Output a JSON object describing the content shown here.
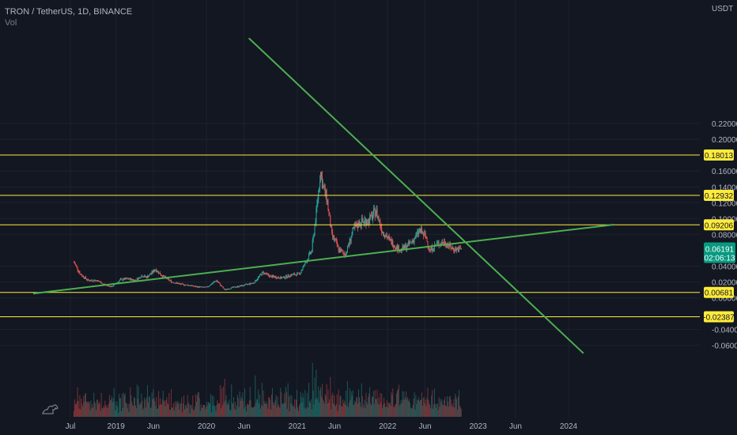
{
  "header": {
    "symbol_line": "TRON / TetherUS, 1D, BINANCE",
    "volume_label": "Vol"
  },
  "colors": {
    "background": "#131722",
    "axis_text": "#b2b5be",
    "trendline": "#4caf50",
    "level_line": "#ffeb3b",
    "level_badge_bg": "#ffeb3b",
    "level_badge_text": "#131722",
    "candle_up": "#26a69a",
    "candle_down": "#ef5350",
    "current_price_bg": "#089981"
  },
  "chart_data": {
    "type": "candlestick",
    "y_axis": {
      "unit_label": "USDT",
      "ticks": [
        "0.22000",
        "0.20000",
        "0.16000",
        "0.14000",
        "0.12000",
        "0.10000",
        "0.08000",
        "0.04000",
        "0.02000",
        "0.00000",
        "-0.04000",
        "-0.06000"
      ],
      "tick_values": [
        0.22,
        0.2,
        0.16,
        0.14,
        0.12,
        0.1,
        0.08,
        0.04,
        0.02,
        0.0,
        -0.04,
        -0.06
      ]
    },
    "x_axis": {
      "ticks": [
        "Jul",
        "2019",
        "Jun",
        "2020",
        "Jun",
        "2021",
        "Jun",
        "2022",
        "Jun",
        "2023",
        "Jun",
        "2024"
      ],
      "tick_dates": [
        "2018-07-01",
        "2019-01-01",
        "2019-06-01",
        "2020-01-01",
        "2020-06-01",
        "2021-01-01",
        "2021-06-01",
        "2022-01-01",
        "2022-06-01",
        "2023-01-01",
        "2023-06-01",
        "2024-01-01"
      ]
    },
    "levels": [
      {
        "label": "0.18013",
        "value": 0.18013
      },
      {
        "label": "0.12932",
        "value": 0.12932
      },
      {
        "label": "0.09206",
        "value": 0.09206
      },
      {
        "label": "0.00681",
        "value": 0.00681
      },
      {
        "label": "-0.02387",
        "value": -0.02387
      }
    ],
    "current_price": {
      "value_label": "0.06191",
      "value": 0.06191,
      "countdown": "02:06:13"
    },
    "trendlines": [
      {
        "name": "descending",
        "points": [
          {
            "date": "2020-06-20",
            "value": 0.3276
          },
          {
            "date": "2024-03-01",
            "value": -0.07
          }
        ]
      },
      {
        "name": "ascending",
        "points": [
          {
            "date": "2018-02-01",
            "value": 0.0054
          },
          {
            "date": "2024-07-01",
            "value": 0.0923
          }
        ]
      }
    ],
    "price_path": [
      [
        "2018-07-15",
        0.045
      ],
      [
        "2018-08-10",
        0.03
      ],
      [
        "2018-09-10",
        0.022
      ],
      [
        "2018-10-15",
        0.022
      ],
      [
        "2018-11-20",
        0.016
      ],
      [
        "2018-12-15",
        0.014
      ],
      [
        "2019-01-20",
        0.023
      ],
      [
        "2019-02-20",
        0.024
      ],
      [
        "2019-03-20",
        0.022
      ],
      [
        "2019-04-15",
        0.028
      ],
      [
        "2019-05-05",
        0.026
      ],
      [
        "2019-06-10",
        0.036
      ],
      [
        "2019-07-05",
        0.028
      ],
      [
        "2019-08-15",
        0.02
      ],
      [
        "2019-09-20",
        0.017
      ],
      [
        "2019-10-20",
        0.016
      ],
      [
        "2019-11-20",
        0.014
      ],
      [
        "2020-01-01",
        0.013
      ],
      [
        "2020-02-10",
        0.022
      ],
      [
        "2020-03-15",
        0.01
      ],
      [
        "2020-04-15",
        0.013
      ],
      [
        "2020-05-20",
        0.015
      ],
      [
        "2020-07-10",
        0.019
      ],
      [
        "2020-08-15",
        0.032
      ],
      [
        "2020-09-15",
        0.027
      ],
      [
        "2020-11-01",
        0.025
      ],
      [
        "2020-12-10",
        0.029
      ],
      [
        "2021-01-10",
        0.03
      ],
      [
        "2021-02-05",
        0.045
      ],
      [
        "2021-03-01",
        0.06
      ],
      [
        "2021-03-20",
        0.11
      ],
      [
        "2021-04-05",
        0.16
      ],
      [
        "2021-04-15",
        0.14
      ],
      [
        "2021-05-01",
        0.125
      ],
      [
        "2021-05-20",
        0.08
      ],
      [
        "2021-06-20",
        0.06
      ],
      [
        "2021-07-15",
        0.055
      ],
      [
        "2021-08-15",
        0.085
      ],
      [
        "2021-09-10",
        0.095
      ],
      [
        "2021-10-20",
        0.098
      ],
      [
        "2021-11-15",
        0.11
      ],
      [
        "2021-12-10",
        0.085
      ],
      [
        "2022-01-10",
        0.072
      ],
      [
        "2022-02-20",
        0.06
      ],
      [
        "2022-03-20",
        0.065
      ],
      [
        "2022-04-20",
        0.075
      ],
      [
        "2022-05-10",
        0.085
      ],
      [
        "2022-06-05",
        0.076
      ],
      [
        "2022-06-20",
        0.06
      ],
      [
        "2022-07-20",
        0.068
      ],
      [
        "2022-08-20",
        0.07
      ],
      [
        "2022-09-20",
        0.062
      ],
      [
        "2022-10-15",
        0.061
      ],
      [
        "2022-10-25",
        0.06191
      ]
    ]
  }
}
